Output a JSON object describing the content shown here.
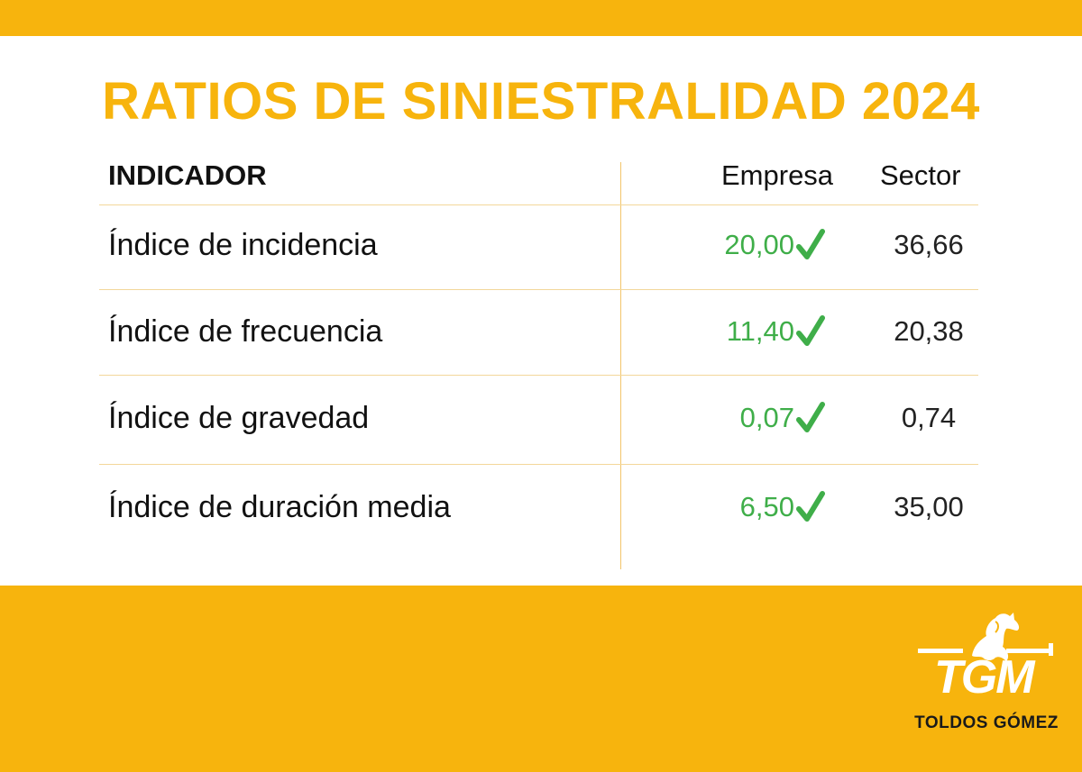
{
  "title": "RATIOS DE SINIESTRALIDAD 2024",
  "table": {
    "headers": {
      "indicator": "INDICADOR",
      "company": "Empresa",
      "sector": "Sector"
    },
    "rows": [
      {
        "label": "Índice de incidencia",
        "company": "20,00",
        "sector": "36,66"
      },
      {
        "label": "Índice de frecuencia",
        "company": "11,40",
        "sector": "20,38"
      },
      {
        "label": "Índice de gravedad",
        "company": "0,07",
        "sector": "0,74"
      },
      {
        "label": "Índice de duración media",
        "company": "6,50",
        "sector": "35,00"
      }
    ]
  },
  "logo": {
    "mark": "TGM",
    "name": "TOLDOS GÓMEZ"
  },
  "colors": {
    "brand_yellow": "#f7b40d",
    "check_green": "#3fae49"
  },
  "icons": {
    "row_status": "check-icon",
    "logo": "horse-icon"
  }
}
